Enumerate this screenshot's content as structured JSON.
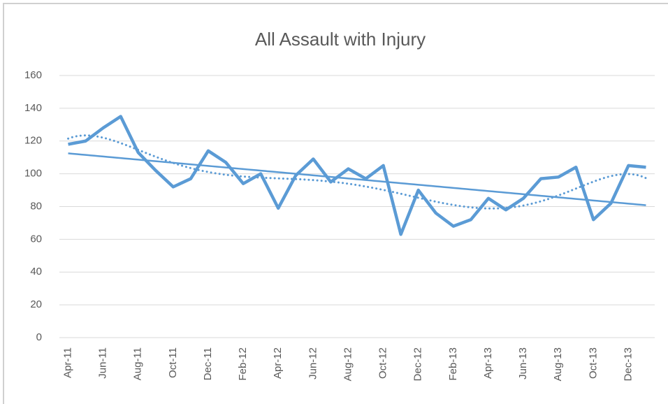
{
  "chart_data": {
    "type": "line",
    "title": "All Assault with Injury",
    "categories": [
      "Apr-11",
      null,
      "Jun-11",
      null,
      "Aug-11",
      null,
      "Oct-11",
      null,
      "Dec-11",
      null,
      "Feb-12",
      null,
      "Apr-12",
      null,
      "Jun-12",
      null,
      "Aug-12",
      null,
      "Oct-12",
      null,
      "Dec-12",
      null,
      "Feb-13",
      null,
      "Apr-13",
      null,
      "Jun-13",
      null,
      "Aug-13",
      null,
      "Oct-13",
      null,
      "Dec-13",
      null
    ],
    "series": [
      {
        "color": "#5b9bd5",
        "values": [
          118,
          120,
          128,
          135,
          113,
          102,
          92,
          97,
          114,
          107,
          94,
          100,
          79,
          99,
          109,
          95,
          103,
          97,
          105,
          63,
          90,
          76,
          68,
          72,
          85,
          78,
          85,
          97,
          98,
          104,
          72,
          82,
          105,
          104
        ]
      }
    ],
    "trendlines": [
      {
        "type": "linear"
      },
      {
        "type": "polynomial",
        "order": 6,
        "dashed": true
      }
    ],
    "ylim": [
      0,
      160
    ],
    "yticks": [
      0,
      20,
      40,
      60,
      80,
      100,
      120,
      140,
      160
    ],
    "grid": true
  }
}
